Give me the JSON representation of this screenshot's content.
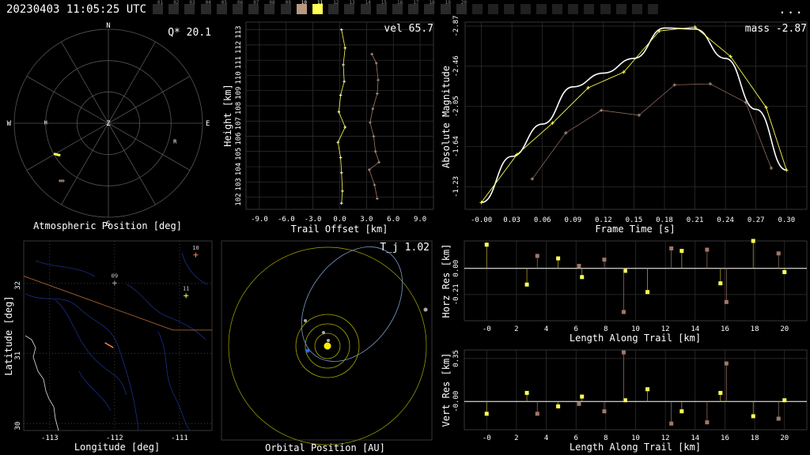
{
  "header": {
    "timestamp": "20230403 11:05:25 UTC",
    "more_label": "...",
    "camera_ids": [
      "01",
      "02",
      "03",
      "04",
      "05",
      "06",
      "07",
      "08",
      "09",
      "10",
      "11",
      "12",
      "13",
      "14",
      "15",
      "16",
      "17",
      "18",
      "19",
      "20"
    ],
    "active_camera": "11",
    "highlight_camera": "10"
  },
  "colors": {
    "primary": "#ffff55",
    "secondary": "#b89880",
    "secondary_alt": "#a07868",
    "grid": "#555555",
    "ground_track": "#ff8844",
    "orbit": "#88aaff",
    "earth": "#2266ff",
    "sun": "#ffee00"
  },
  "chart_data": [
    {
      "id": "atmospheric-position",
      "type": "scatter",
      "title": "Q* 20.1",
      "xlabel": "Atmospheric Position [deg]",
      "directions": [
        "N",
        "E",
        "S",
        "W",
        "Z"
      ],
      "markers": [
        {
          "label": "H",
          "az": 271,
          "zen": 60
        },
        {
          "label": "R",
          "az": 105,
          "zen": 66
        }
      ],
      "series": [
        {
          "points": [
            {
              "az": 237,
              "zen": 56
            },
            {
              "az": 238,
              "zen": 57
            },
            {
              "az": 239,
              "zen": 58
            },
            {
              "az": 240,
              "zen": 59
            }
          ]
        },
        {
          "points": [
            {
              "az": 218,
              "zen": 70
            },
            {
              "az": 219,
              "zen": 71
            },
            {
              "az": 220,
              "zen": 72
            }
          ]
        }
      ]
    },
    {
      "id": "trail-offset",
      "type": "line",
      "title": "vel 65.7",
      "xlabel": "Trail Offset [km]",
      "ylabel": "Height [km]",
      "xlim": [
        -10.5,
        10.5
      ],
      "ylim": [
        101.2,
        113.5
      ],
      "xticks": [
        "-9.0",
        "-6.0",
        "-3.0",
        "0.0",
        "3.0",
        "6.0",
        "9.0"
      ],
      "yticks": [
        "102",
        "103",
        "104",
        "105",
        "106",
        "107",
        "108",
        "109",
        "110",
        "111",
        "112",
        "113"
      ],
      "series": [
        {
          "x": [
            0.2,
            0.6,
            0.4,
            0.5,
            0.1,
            -0.1,
            0.6,
            -0.2,
            0.1,
            0.2,
            0.3,
            0.2
          ],
          "y": [
            113.0,
            111.8,
            110.7,
            109.6,
            108.7,
            107.6,
            106.6,
            105.6,
            104.6,
            103.6,
            102.4,
            101.6
          ]
        },
        {
          "x": [
            3.6,
            4.1,
            4.3,
            4.2,
            3.7,
            3.4,
            3.8,
            4.0,
            4.4,
            3.3,
            3.9,
            4.2
          ],
          "y": [
            111.4,
            110.8,
            109.7,
            108.8,
            107.8,
            106.9,
            106.0,
            105.0,
            104.3,
            103.8,
            102.8,
            101.9
          ]
        }
      ]
    },
    {
      "id": "absolute-magnitude",
      "type": "line",
      "title": "mass -2.87",
      "xlabel": "Frame Time [s]",
      "ylabel": "Absolute Magnitude",
      "xlim": [
        -0.016,
        0.32
      ],
      "ylim": [
        -1.0,
        -2.91
      ],
      "xticks": [
        "-0.00",
        "0.03",
        "0.06",
        "0.09",
        "0.12",
        "0.15",
        "0.18",
        "0.21",
        "0.24",
        "0.27",
        "0.30"
      ],
      "yticks": [
        "-1.23",
        "-1.64",
        "-2.05",
        "-2.46",
        "-2.87"
      ],
      "fit": {
        "x": [
          0.0,
          0.03,
          0.06,
          0.09,
          0.12,
          0.15,
          0.18,
          0.21,
          0.24,
          0.27,
          0.3
        ],
        "y": [
          -1.07,
          -1.54,
          -1.87,
          -2.25,
          -2.39,
          -2.54,
          -2.85,
          -2.84,
          -2.54,
          -2.02,
          -1.4
        ]
      },
      "series": [
        {
          "x": [
            0.0,
            0.035,
            0.07,
            0.105,
            0.14,
            0.175,
            0.21,
            0.245,
            0.28,
            0.3
          ],
          "y": [
            -1.07,
            -1.56,
            -1.88,
            -2.24,
            -2.4,
            -2.82,
            -2.86,
            -2.56,
            -2.04,
            -1.4
          ]
        },
        {
          "x": [
            0.05,
            0.083,
            0.118,
            0.155,
            0.19,
            0.225,
            0.26,
            0.285
          ],
          "y": [
            -1.31,
            -1.78,
            -2.01,
            -1.96,
            -2.27,
            -2.28,
            -2.09,
            -1.42
          ]
        }
      ]
    },
    {
      "id": "ground-track",
      "type": "map",
      "xlabel": "Longitude [deg]",
      "ylabel": "Latitude [deg]",
      "xlim": [
        -113.4,
        -110.5
      ],
      "ylim": [
        29.9,
        32.6
      ],
      "xticks": [
        "-113",
        "-112",
        "-111"
      ],
      "yticks": [
        "30",
        "31",
        "32"
      ],
      "stations": [
        {
          "label": "09",
          "lon": -112.0,
          "lat": 32.0
        },
        {
          "label": "10",
          "lon": -110.75,
          "lat": 32.4
        },
        {
          "label": "11",
          "lon": -110.9,
          "lat": 31.82
        }
      ],
      "border": [
        {
          "lon": -113.4,
          "lat": 32.1
        },
        {
          "lon": -111.1,
          "lat": 31.33
        },
        {
          "lon": -110.5,
          "lat": 31.33
        }
      ],
      "track": [
        {
          "lon": -112.15,
          "lat": 31.15
        },
        {
          "lon": -112.02,
          "lat": 31.08
        }
      ]
    },
    {
      "id": "orbital-position",
      "type": "scatter",
      "title": "T_j 1.02",
      "xlabel": "Orbital Position [AU]"
    },
    {
      "id": "horizontal-residuals",
      "type": "scatter",
      "xlabel": "Length Along Trail [km]",
      "ylabel": "Horz Res [km]",
      "xlim": [
        -1.5,
        21.5
      ],
      "ylim": [
        -0.42,
        0.22
      ],
      "xticks": [
        "-0",
        "2",
        "4",
        "6",
        "8",
        "10",
        "12",
        "14",
        "16",
        "18",
        "20"
      ],
      "yticks": [
        "-0.21",
        "0.00"
      ],
      "series": [
        {
          "x": [
            0.0,
            2.7,
            4.8,
            6.4,
            9.3,
            10.8,
            13.1,
            15.7,
            17.9,
            20.0
          ],
          "y": [
            0.19,
            -0.13,
            0.08,
            -0.07,
            -0.02,
            -0.19,
            0.14,
            -0.12,
            0.22,
            -0.03
          ]
        },
        {
          "x": [
            3.4,
            6.2,
            7.9,
            9.2,
            12.4,
            14.8,
            16.1,
            19.6
          ],
          "y": [
            0.1,
            0.02,
            0.07,
            -0.35,
            0.16,
            0.15,
            -0.27,
            0.12
          ]
        }
      ]
    },
    {
      "id": "vertical-residuals",
      "type": "scatter",
      "xlabel": "Length Along Trail [km]",
      "ylabel": "Vert Res [km]",
      "xlim": [
        -1.5,
        21.5
      ],
      "ylim": [
        -0.23,
        0.42
      ],
      "xticks": [
        "-0",
        "2",
        "4",
        "6",
        "8",
        "10",
        "12",
        "14",
        "16",
        "18",
        "20"
      ],
      "yticks": [
        "-0.00",
        "0.35"
      ],
      "series": [
        {
          "x": [
            0.0,
            2.7,
            4.8,
            6.4,
            9.3,
            10.8,
            13.1,
            15.7,
            17.9,
            20.0
          ],
          "y": [
            -0.1,
            0.07,
            -0.04,
            0.04,
            0.01,
            0.1,
            -0.08,
            0.07,
            -0.12,
            0.01
          ]
        },
        {
          "x": [
            3.4,
            6.2,
            7.9,
            9.2,
            12.4,
            14.8,
            16.1,
            19.6
          ],
          "y": [
            -0.1,
            -0.02,
            -0.08,
            0.4,
            -0.18,
            -0.17,
            0.31,
            -0.14
          ]
        }
      ]
    }
  ]
}
